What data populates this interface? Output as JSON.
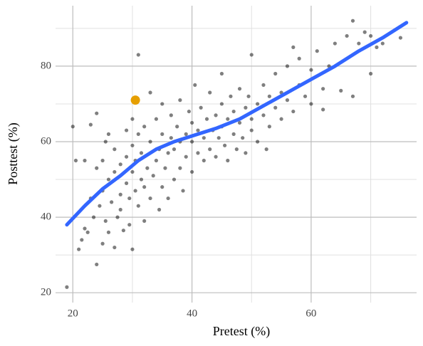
{
  "chart_data": {
    "type": "scatter",
    "x_label": "Pretest (%)",
    "y_label": "Posttest (%)",
    "xlim": [
      17.1,
      77.7
    ],
    "ylim": [
      17.4,
      96
    ],
    "xticks": [
      20,
      40,
      60
    ],
    "yticks": [
      20,
      40,
      60,
      80
    ],
    "xminor": [
      30,
      50,
      70
    ],
    "yminor": [
      30,
      50,
      70,
      90
    ],
    "grid": true,
    "points": {
      "color": "#000000",
      "x": [
        19,
        20,
        20.5,
        21,
        21.5,
        22,
        22,
        22.5,
        23,
        23,
        23.5,
        24,
        24,
        24,
        24.5,
        25,
        25,
        25,
        25.5,
        25.5,
        26,
        26,
        26,
        26.5,
        27,
        27,
        27,
        27.5,
        28,
        28,
        28,
        28.5,
        29,
        29,
        29,
        29.5,
        29.5,
        30,
        30,
        30,
        30,
        30.5,
        30.5,
        31,
        31,
        31,
        31.5,
        31.5,
        32,
        32,
        32,
        32.5,
        33,
        33,
        33,
        33.5,
        34,
        34,
        34.5,
        34.5,
        35,
        35,
        35,
        35.5,
        36,
        36,
        36.5,
        36.5,
        37,
        37,
        37.5,
        38,
        38,
        38,
        38.5,
        39,
        39,
        39.5,
        40,
        40,
        40,
        40.5,
        41,
        41,
        41.5,
        42,
        42,
        42.5,
        43,
        43,
        43.5,
        44,
        44,
        44.5,
        45,
        45,
        45,
        45.5,
        46,
        46,
        46.5,
        47,
        47,
        47.5,
        48,
        48,
        48.5,
        49,
        49,
        49.5,
        50,
        50,
        50,
        51,
        51,
        52,
        52,
        52.5,
        53,
        53,
        54,
        54,
        55,
        55,
        56,
        56,
        57,
        57,
        58,
        58,
        59,
        60,
        60,
        61,
        62,
        62,
        63,
        64,
        65,
        66,
        67,
        67,
        68,
        69,
        70,
        70,
        71,
        72,
        75
      ],
      "y": [
        21.5,
        64,
        55,
        31.5,
        34,
        37,
        55,
        36,
        45,
        64.5,
        40,
        27.5,
        53,
        67.5,
        43,
        33,
        47,
        55,
        39,
        60,
        36,
        50,
        62,
        44,
        32,
        52,
        58,
        40,
        46,
        54,
        42,
        36.5,
        49,
        56,
        63,
        38,
        45,
        31.5,
        52,
        59,
        66,
        47,
        55,
        43,
        62,
        83,
        50,
        57,
        39,
        48,
        64,
        53,
        45,
        60,
        73,
        51,
        55,
        66,
        42,
        58,
        48,
        62,
        70,
        53,
        57,
        45,
        61,
        67,
        50,
        58,
        64,
        53,
        60,
        71,
        47,
        56,
        62,
        68,
        52,
        60,
        65,
        75,
        57,
        63,
        69,
        55,
        61,
        66,
        58,
        73,
        63,
        56,
        67,
        61,
        64,
        70,
        78,
        59,
        66,
        55,
        72,
        62,
        68,
        58,
        65,
        74,
        61,
        69,
        57,
        72,
        66,
        83,
        63,
        70,
        60,
        75,
        67,
        58,
        72,
        64,
        78,
        69,
        66,
        73,
        80,
        71,
        85,
        68,
        75,
        82,
        72,
        79,
        70,
        84,
        74,
        68.5,
        80,
        86,
        73.5,
        88,
        92,
        72,
        86,
        89,
        78,
        88,
        85,
        86,
        87.5
      ]
    },
    "highlight": {
      "x": 30.5,
      "y": 71,
      "color": "#E69F00"
    },
    "trend": {
      "color": "#3366FF",
      "x": [
        19,
        22,
        25,
        28,
        31,
        34,
        37,
        40,
        44,
        48,
        52,
        56,
        60,
        64,
        68,
        72,
        76
      ],
      "y": [
        38,
        43,
        47.5,
        51,
        55,
        58,
        60,
        61.5,
        63.5,
        66,
        69.5,
        73,
        76.5,
        80,
        84,
        87.5,
        91.5
      ]
    }
  }
}
